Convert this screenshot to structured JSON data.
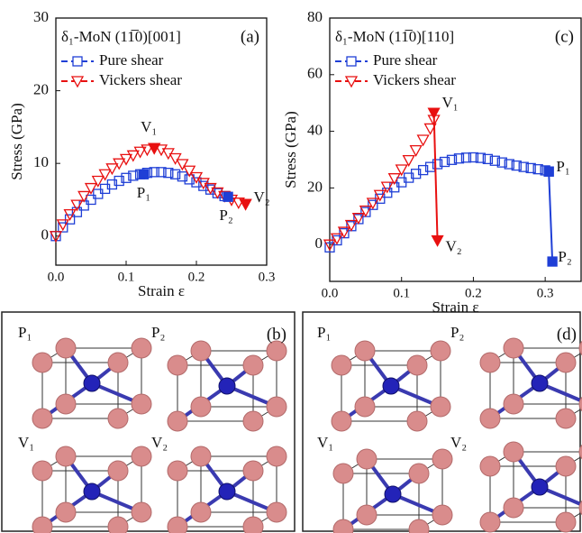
{
  "chart_data": [
    {
      "type": "scatter",
      "title": "δ₁-MoN (11̅0)[001]",
      "panel": "(a)",
      "xlabel": "Strain ε",
      "ylabel": "Stress (GPa)",
      "xlim": [
        0,
        0.3
      ],
      "ylim": [
        -4,
        30
      ],
      "xticks": [
        {
          "value": 0,
          "label": "0.0"
        },
        0.1,
        0.2,
        0.3
      ],
      "yticks": [
        0,
        10,
        20,
        30
      ],
      "legend": "upper left",
      "connect_annotations": false,
      "series": [
        {
          "name": "Pure shear",
          "color": "#1f3fd6",
          "marker": "square",
          "x": [
            0,
            0.01,
            0.02,
            0.03,
            0.04,
            0.05,
            0.06,
            0.07,
            0.08,
            0.09,
            0.1,
            0.11,
            0.12,
            0.13,
            0.14,
            0.15,
            0.16,
            0.17,
            0.18,
            0.19,
            0.2,
            0.21,
            0.22,
            0.23,
            0.24
          ],
          "values": [
            0,
            1.2,
            2.3,
            3.3,
            4.2,
            5,
            5.8,
            6.5,
            7.1,
            7.6,
            8,
            8.3,
            8.5,
            8.7,
            8.8,
            8.8,
            8.7,
            8.5,
            8.2,
            7.8,
            7.4,
            6.9,
            6.4,
            5.9,
            5.5
          ]
        },
        {
          "name": "Vickers shear",
          "color": "#e81010",
          "marker": "triangle",
          "x": [
            0,
            0.01,
            0.02,
            0.03,
            0.04,
            0.05,
            0.06,
            0.07,
            0.08,
            0.09,
            0.1,
            0.11,
            0.12,
            0.13,
            0.14,
            0.15,
            0.16,
            0.17,
            0.18,
            0.19,
            0.2,
            0.21,
            0.22,
            0.23,
            0.24,
            0.25,
            0.26,
            0.27
          ],
          "values": [
            0,
            1.6,
            3,
            4.3,
            5.5,
            6.6,
            7.6,
            8.5,
            9.3,
            10,
            10.6,
            11.1,
            11.6,
            11.9,
            12.1,
            11.9,
            11.4,
            10.7,
            9.9,
            9,
            8.1,
            7.3,
            6.6,
            6,
            5.5,
            5,
            4.6,
            4.4
          ]
        }
      ],
      "annotations": [
        {
          "label": "V₁",
          "x": 0.14,
          "y": 12.1,
          "color": "#e81010",
          "marker": "triangle"
        },
        {
          "label": "V₂",
          "x": 0.27,
          "y": 4.4,
          "color": "#e81010",
          "marker": "triangle"
        },
        {
          "label": "P₁",
          "x": 0.125,
          "y": 8.5,
          "color": "#1f3fd6",
          "marker": "square"
        },
        {
          "label": "P₂",
          "x": 0.245,
          "y": 5.4,
          "color": "#1f3fd6",
          "marker": "square"
        }
      ]
    },
    {
      "type": "scatter",
      "title": "δ₁-MoN (11̅0)[110]",
      "panel": "(c)",
      "xlabel": "Strain ε",
      "ylabel": "Stress (GPa)",
      "xlim": [
        0,
        0.35
      ],
      "ylim": [
        -13,
        80
      ],
      "xticks": [
        {
          "value": 0,
          "label": "0.0"
        },
        0.1,
        0.2,
        0.3
      ],
      "yticks": [
        0,
        20,
        40,
        60,
        80
      ],
      "legend": "upper left",
      "connect_annotations": true,
      "series": [
        {
          "name": "Pure shear",
          "color": "#1f3fd6",
          "marker": "square",
          "x": [
            0,
            0.01,
            0.02,
            0.03,
            0.04,
            0.05,
            0.06,
            0.07,
            0.08,
            0.09,
            0.1,
            0.11,
            0.12,
            0.13,
            0.14,
            0.15,
            0.16,
            0.17,
            0.18,
            0.19,
            0.2,
            0.21,
            0.22,
            0.23,
            0.24,
            0.25,
            0.26,
            0.27,
            0.28,
            0.29,
            0.3,
            0.305
          ],
          "values": [
            -1,
            1.5,
            4,
            6.5,
            9,
            11.5,
            14,
            16.2,
            18.3,
            20.2,
            22,
            23.6,
            25,
            26.3,
            27.4,
            28.4,
            29.2,
            29.9,
            30.4,
            30.7,
            30.8,
            30.6,
            30.2,
            29.6,
            29,
            28.4,
            27.9,
            27.4,
            27,
            26.6,
            26.2,
            25.8
          ]
        },
        {
          "name": "Vickers shear",
          "color": "#e81010",
          "marker": "triangle",
          "x": [
            0,
            0.01,
            0.02,
            0.03,
            0.04,
            0.05,
            0.06,
            0.07,
            0.08,
            0.09,
            0.1,
            0.11,
            0.12,
            0.13,
            0.14,
            0.145
          ],
          "values": [
            0,
            2.2,
            4.5,
            6.9,
            9.4,
            12,
            14.7,
            17.5,
            20.4,
            23.4,
            26.5,
            29.8,
            33.3,
            37,
            41,
            44
          ]
        }
      ],
      "annotations": [
        {
          "label": "V₁",
          "x": 0.145,
          "y": 46.5,
          "color": "#e81010",
          "marker": "triangle"
        },
        {
          "label": "V₂",
          "x": 0.15,
          "y": 1.5,
          "color": "#e81010",
          "marker": "triangle"
        },
        {
          "label": "P₁",
          "x": 0.305,
          "y": 25.8,
          "color": "#1f3fd6",
          "marker": "square"
        },
        {
          "label": "P₂",
          "x": 0.31,
          "y": -6,
          "color": "#1f3fd6",
          "marker": "square"
        }
      ]
    }
  ],
  "structures": [
    {
      "panel": "(b)",
      "labels": [
        "P₁",
        "P₂",
        "V₁",
        "V₂"
      ]
    },
    {
      "panel": "(d)",
      "labels": [
        "P₁",
        "P₂",
        "V₁",
        "V₂"
      ]
    }
  ]
}
